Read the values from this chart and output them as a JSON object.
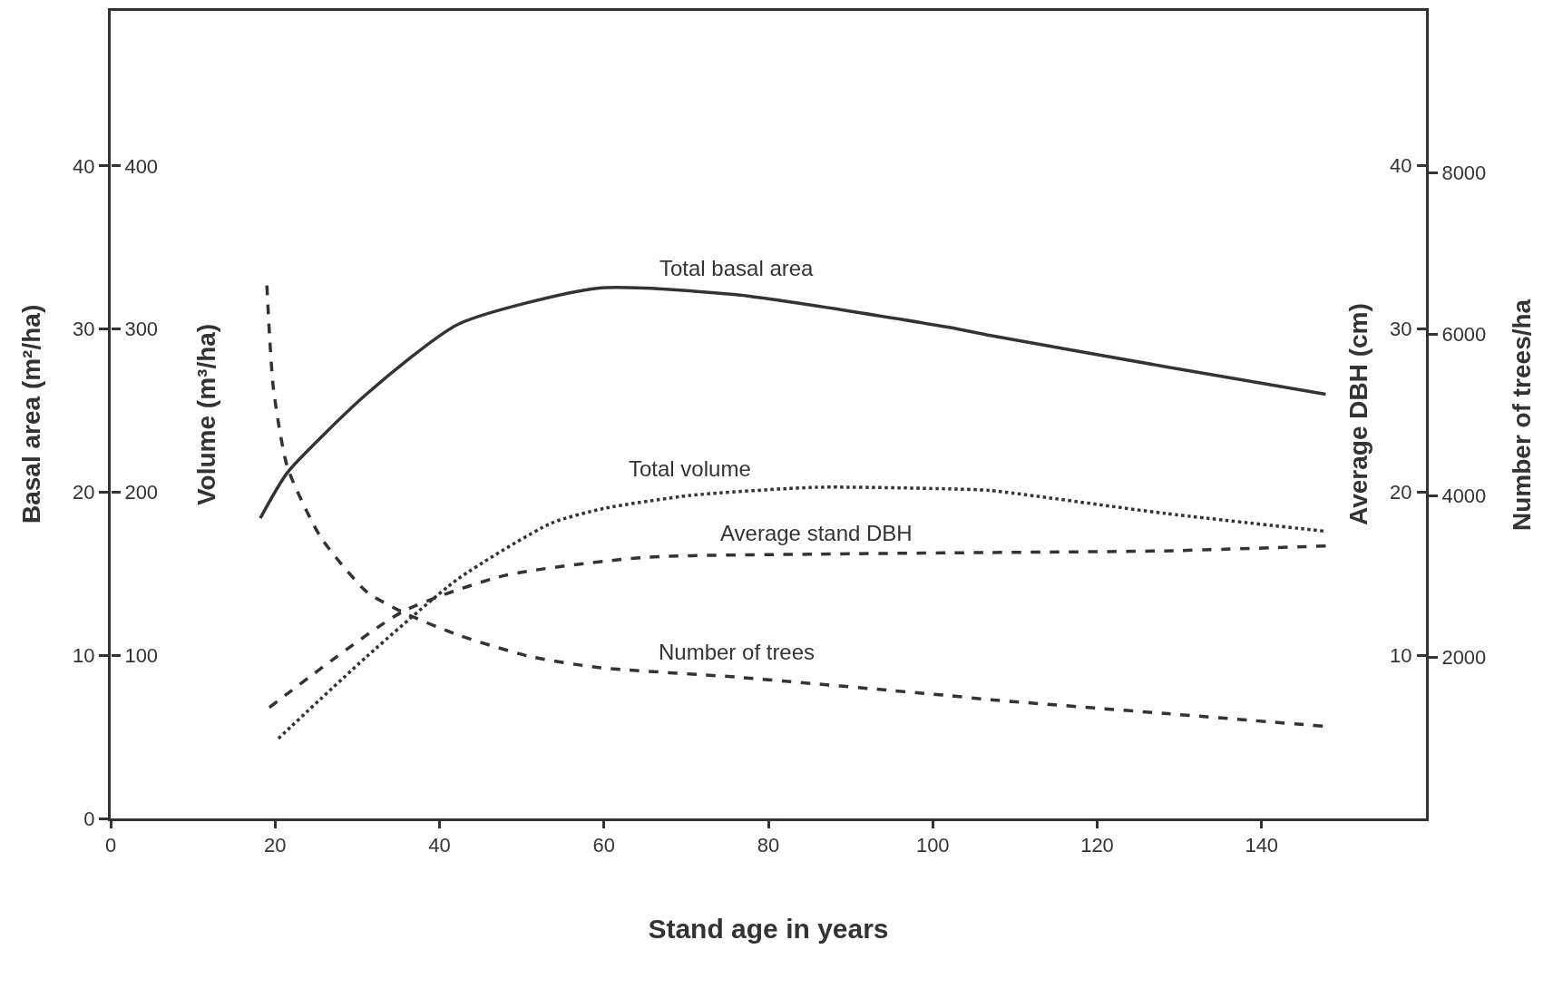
{
  "chart_data": {
    "type": "line",
    "xlabel": "Stand age in years",
    "ylabel": "Basal area (m²/ha)",
    "y2label": "Volume (m³/ha)",
    "y3label": "Number of trees/ha",
    "annotations": [
      "Average DBH (cm)",
      "10",
      "20",
      "30",
      "40"
    ],
    "xlim": [
      0,
      160
    ],
    "xticks": [
      0,
      20,
      40,
      60,
      80,
      100,
      120,
      140
    ],
    "ylim": [
      0,
      49.5
    ],
    "yticks": [
      0,
      10,
      20,
      30,
      40
    ],
    "y2lim": [
      0,
      495
    ],
    "y2ticks": [
      100,
      200,
      300,
      400
    ],
    "y3lim": [
      0,
      10000
    ],
    "y3ticks": [
      2000,
      4000,
      6000,
      8000
    ],
    "legend": false,
    "series": [
      {
        "name": "Total basal area",
        "color": "#333333",
        "line_style": "solid",
        "x": [
          18.2,
          21.5,
          31.1,
          42.3,
          59.2,
          76.1,
          102,
          107,
          128.2,
          147.8
        ],
        "values": [
          18.4,
          21.2,
          26.0,
          30.3,
          32.5,
          32.1,
          30.1,
          29.6,
          27.7,
          26.0
        ]
      },
      {
        "name": "Total volume",
        "color": "#333333",
        "line_style": "dotted",
        "axis": "y2",
        "x": [
          20.4,
          31.1,
          42.3,
          53.6,
          60,
          70.5,
          85.9,
          102,
          107,
          128.2,
          147.8
        ],
        "values": [
          49,
          99,
          147,
          181,
          190,
          198,
          203,
          202,
          201,
          187,
          176
        ]
      },
      {
        "name": "Average stand DBH",
        "color": "#333333",
        "line_style": "dashed",
        "x": [
          19.3,
          35.6,
          48,
          64.9,
          85.9,
          107,
          128.2,
          147.8
        ],
        "values": [
          6.8,
          12.7,
          14.9,
          16.0,
          16.2,
          16.3,
          16.4,
          16.7
        ]
      },
      {
        "name": "Number of trees",
        "color": "#333333",
        "line_style": "dashed",
        "axis": "y3",
        "x": [
          19.0,
          19.8,
          21.5,
          25.5,
          31.1,
          35.6,
          42.3,
          50.8,
          59.2,
          76.1,
          102,
          107,
          128.2,
          147.8
        ],
        "values": [
          6600,
          5320,
          4350,
          3490,
          2810,
          2550,
          2270,
          2010,
          1870,
          1750,
          1520,
          1470,
          1300,
          1140
        ]
      }
    ]
  }
}
